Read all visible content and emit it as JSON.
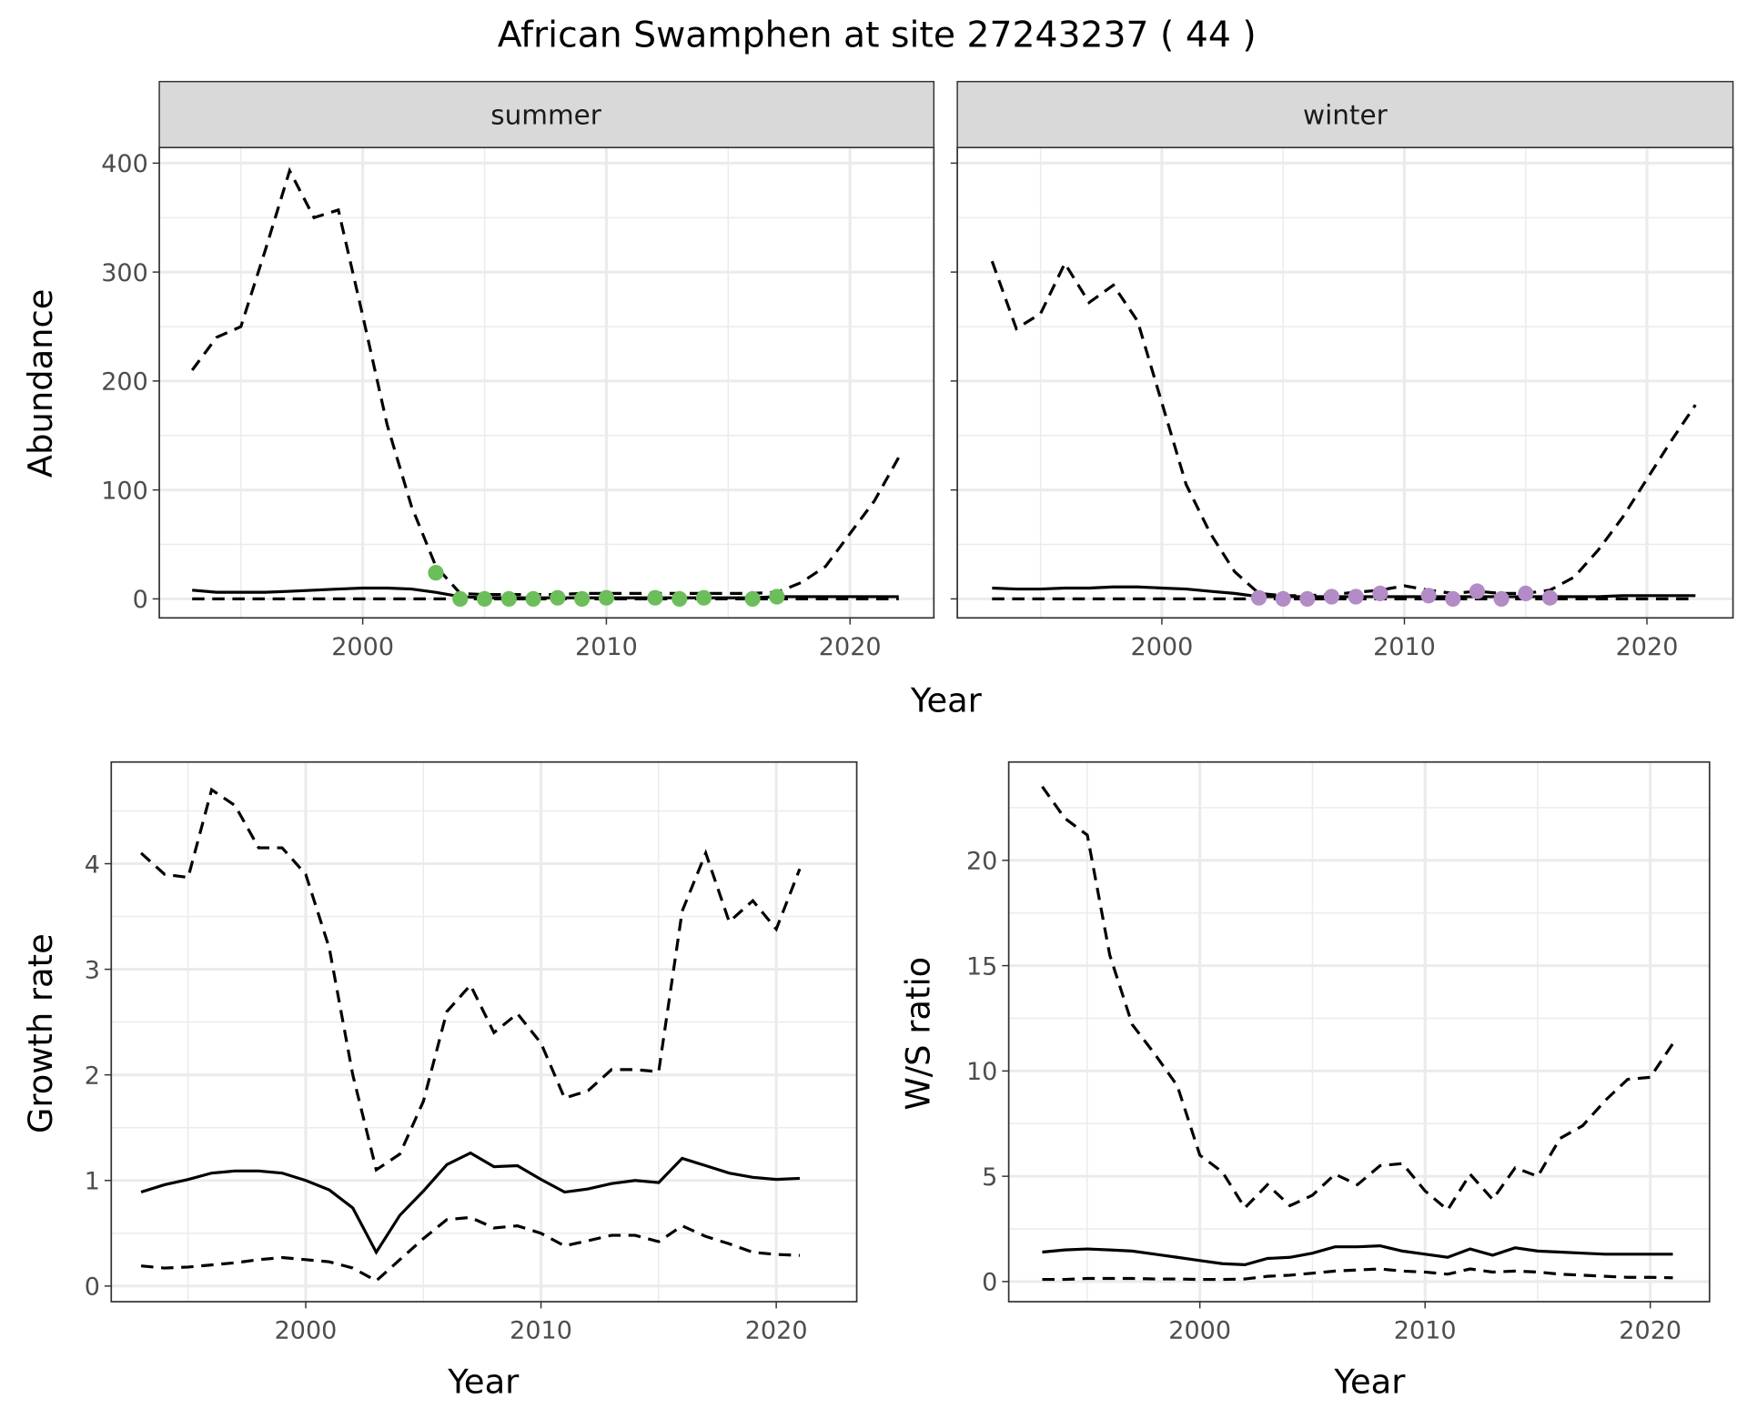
{
  "title": "African Swamphen at site 27243237 ( 44 )",
  "colors": {
    "summer_points": "#6BBE5A",
    "winter_points": "#B38BC6",
    "lines": "#000000",
    "strip_bg": "#D9D9D9",
    "grid": "#EBEBEB"
  },
  "chart_data": [
    {
      "type": "line",
      "facet": "summer",
      "xlabel": "Year",
      "ylabel": "Abundance",
      "xlim": [
        1993,
        2022
      ],
      "ylim": [
        0,
        400
      ],
      "xticks": [
        2000,
        2010,
        2020
      ],
      "yticks": [
        0,
        100,
        200,
        300,
        400
      ],
      "grid": true,
      "x": [
        1993,
        1994,
        1995,
        1996,
        1997,
        1998,
        1999,
        2000,
        2001,
        2002,
        2003,
        2004,
        2005,
        2006,
        2007,
        2008,
        2009,
        2010,
        2011,
        2012,
        2013,
        2014,
        2015,
        2016,
        2017,
        2018,
        2019,
        2020,
        2021,
        2022
      ],
      "series": [
        {
          "style": "dashed",
          "values": [
            210,
            240,
            250,
            320,
            393,
            350,
            357,
            260,
            160,
            85,
            30,
            5,
            4,
            4,
            4,
            4,
            5,
            5,
            5,
            5,
            5,
            5,
            5,
            5,
            6,
            15,
            30,
            60,
            90,
            130
          ]
        },
        {
          "style": "solid",
          "values": [
            8,
            6,
            6,
            6,
            7,
            8,
            9,
            10,
            10,
            9,
            6,
            2,
            1,
            1,
            1,
            1,
            1,
            1,
            1,
            1,
            1,
            1,
            1,
            1,
            2,
            2,
            2,
            2,
            2,
            2
          ]
        },
        {
          "style": "dashed",
          "values": [
            0,
            0,
            0,
            0,
            0,
            0,
            0,
            0,
            0,
            0,
            0,
            0,
            0,
            0,
            0,
            0,
            0,
            0,
            0,
            0,
            0,
            0,
            0,
            0,
            0,
            0,
            0,
            0,
            0,
            0
          ]
        }
      ],
      "points": {
        "x": [
          2003,
          2004,
          2005,
          2006,
          2007,
          2008,
          2009,
          2010,
          2012,
          2013,
          2014,
          2016,
          2017
        ],
        "y": [
          24,
          0,
          0,
          0,
          0,
          1,
          0,
          1,
          1,
          0,
          1,
          0,
          2
        ]
      }
    },
    {
      "type": "line",
      "facet": "winter",
      "xlim": [
        1993,
        2022
      ],
      "ylim": [
        0,
        400
      ],
      "xticks": [
        2000,
        2010,
        2020
      ],
      "yticks": [
        0,
        100,
        200,
        300,
        400
      ],
      "grid": true,
      "x": [
        1993,
        1994,
        1995,
        1996,
        1997,
        1998,
        1999,
        2000,
        2001,
        2002,
        2003,
        2004,
        2005,
        2006,
        2007,
        2008,
        2009,
        2010,
        2011,
        2012,
        2013,
        2014,
        2015,
        2016,
        2017,
        2018,
        2019,
        2020,
        2021,
        2022
      ],
      "series": [
        {
          "style": "dashed",
          "values": [
            310,
            248,
            262,
            308,
            272,
            288,
            255,
            180,
            105,
            60,
            25,
            5,
            3,
            3,
            4,
            6,
            8,
            12,
            8,
            5,
            7,
            5,
            5,
            8,
            20,
            45,
            75,
            110,
            145,
            178
          ]
        },
        {
          "style": "solid",
          "values": [
            10,
            9,
            9,
            10,
            10,
            11,
            11,
            10,
            9,
            7,
            5,
            2,
            2,
            2,
            2,
            2,
            2,
            2,
            2,
            2,
            2,
            2,
            2,
            2,
            2,
            2,
            3,
            3,
            3,
            3
          ]
        },
        {
          "style": "dashed",
          "values": [
            0,
            0,
            0,
            0,
            0,
            0,
            0,
            0,
            0,
            0,
            0,
            0,
            0,
            0,
            0,
            0,
            0,
            0,
            0,
            0,
            0,
            0,
            0,
            0,
            0,
            0,
            0,
            0,
            0,
            0
          ]
        }
      ],
      "points": {
        "x": [
          2004,
          2005,
          2006,
          2007,
          2008,
          2009,
          2011,
          2012,
          2013,
          2014,
          2015,
          2016
        ],
        "y": [
          1,
          0,
          0,
          2,
          2,
          5,
          3,
          0,
          7,
          0,
          5,
          1
        ]
      }
    },
    {
      "type": "line",
      "xlabel": "Year",
      "ylabel": "Growth rate",
      "xlim": [
        1993,
        2021
      ],
      "ylim": [
        0,
        4.7
      ],
      "xticks": [
        2000,
        2010,
        2020
      ],
      "yticks": [
        0,
        1,
        2,
        3,
        4
      ],
      "grid": true,
      "x": [
        1993,
        1994,
        1995,
        1996,
        1997,
        1998,
        1999,
        2000,
        2001,
        2002,
        2003,
        2004,
        2005,
        2006,
        2007,
        2008,
        2009,
        2010,
        2011,
        2012,
        2013,
        2014,
        2015,
        2016,
        2017,
        2018,
        2019,
        2020,
        2021
      ],
      "series": [
        {
          "style": "dashed",
          "values": [
            4.1,
            3.9,
            3.87,
            4.7,
            4.55,
            4.15,
            4.15,
            3.9,
            3.2,
            2.0,
            1.1,
            1.25,
            1.75,
            2.6,
            2.85,
            2.4,
            2.58,
            2.3,
            1.78,
            1.85,
            2.05,
            2.05,
            2.03,
            3.55,
            4.1,
            3.45,
            3.65,
            3.38,
            3.95
          ]
        },
        {
          "style": "solid",
          "values": [
            0.89,
            0.96,
            1.01,
            1.07,
            1.09,
            1.09,
            1.07,
            1.0,
            0.91,
            0.74,
            0.32,
            0.67,
            0.9,
            1.15,
            1.26,
            1.13,
            1.14,
            1.01,
            0.89,
            0.92,
            0.97,
            1.0,
            0.98,
            1.21,
            1.14,
            1.07,
            1.03,
            1.01,
            1.02
          ]
        },
        {
          "style": "dashed",
          "values": [
            0.19,
            0.17,
            0.18,
            0.2,
            0.22,
            0.25,
            0.27,
            0.25,
            0.23,
            0.17,
            0.05,
            0.25,
            0.45,
            0.63,
            0.65,
            0.55,
            0.57,
            0.5,
            0.38,
            0.43,
            0.48,
            0.48,
            0.42,
            0.57,
            0.47,
            0.4,
            0.32,
            0.3,
            0.29
          ]
        }
      ]
    },
    {
      "type": "line",
      "xlabel": "Year",
      "ylabel": "W/S ratio",
      "xlim": [
        1993,
        2021
      ],
      "ylim": [
        0,
        23.5
      ],
      "xticks": [
        2000,
        2010,
        2020
      ],
      "yticks": [
        0,
        5,
        10,
        15,
        20
      ],
      "grid": true,
      "x": [
        1993,
        1994,
        1995,
        1996,
        1997,
        1998,
        1999,
        2000,
        2001,
        2002,
        2003,
        2004,
        2005,
        2006,
        2007,
        2008,
        2009,
        2010,
        2011,
        2012,
        2013,
        2014,
        2015,
        2016,
        2017,
        2018,
        2019,
        2020,
        2021
      ],
      "series": [
        {
          "style": "dashed",
          "values": [
            23.5,
            22,
            21.2,
            15.5,
            12.2,
            10.8,
            9.3,
            6.0,
            5.2,
            3.5,
            4.6,
            3.6,
            4.1,
            5.1,
            4.6,
            5.5,
            5.6,
            4.3,
            3.4,
            5.1,
            3.9,
            5.4,
            5.0,
            6.8,
            7.4,
            8.6,
            9.6,
            9.7,
            11.3
          ]
        },
        {
          "style": "solid",
          "values": [
            1.4,
            1.5,
            1.55,
            1.5,
            1.45,
            1.3,
            1.15,
            1.0,
            0.85,
            0.8,
            1.1,
            1.15,
            1.35,
            1.65,
            1.65,
            1.7,
            1.45,
            1.3,
            1.15,
            1.55,
            1.25,
            1.6,
            1.45,
            1.4,
            1.35,
            1.3,
            1.3,
            1.3,
            1.3
          ]
        },
        {
          "style": "dashed",
          "values": [
            0.1,
            0.1,
            0.15,
            0.15,
            0.15,
            0.12,
            0.12,
            0.1,
            0.1,
            0.12,
            0.25,
            0.3,
            0.4,
            0.5,
            0.55,
            0.6,
            0.5,
            0.45,
            0.35,
            0.6,
            0.45,
            0.5,
            0.45,
            0.35,
            0.3,
            0.25,
            0.2,
            0.2,
            0.18
          ]
        }
      ]
    }
  ]
}
